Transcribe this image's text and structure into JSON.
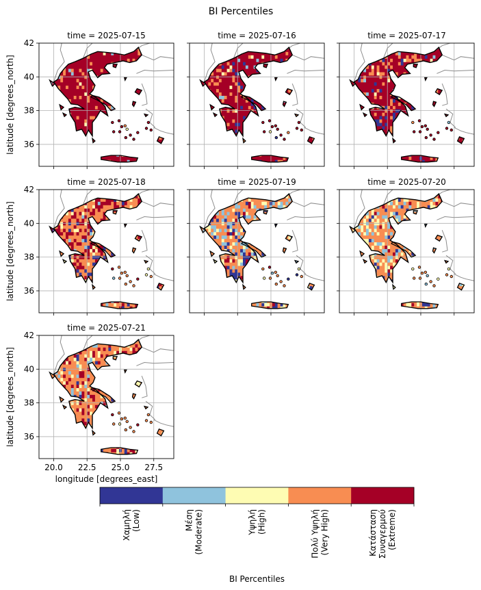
{
  "title": "BI Percentiles",
  "panels": [
    {
      "label": "time = 2025-07-15",
      "mix": [
        0.0,
        0.02,
        0.03,
        0.12,
        0.83
      ]
    },
    {
      "label": "time = 2025-07-16",
      "mix": [
        0.03,
        0.02,
        0.03,
        0.15,
        0.77
      ]
    },
    {
      "label": "time = 2025-07-17",
      "mix": [
        0.05,
        0.02,
        0.03,
        0.18,
        0.72
      ]
    },
    {
      "label": "time = 2025-07-18",
      "mix": [
        0.05,
        0.05,
        0.08,
        0.52,
        0.3
      ]
    },
    {
      "label": "time = 2025-07-19",
      "mix": [
        0.1,
        0.15,
        0.15,
        0.55,
        0.05
      ]
    },
    {
      "label": "time = 2025-07-20",
      "mix": [
        0.04,
        0.12,
        0.22,
        0.57,
        0.05
      ]
    },
    {
      "label": "time = 2025-07-21",
      "mix": [
        0.03,
        0.06,
        0.12,
        0.59,
        0.2
      ]
    }
  ],
  "axes": {
    "ylabel": "latitude [degrees_north]",
    "xlabel": "longitude [degrees_east]",
    "xticks": [
      "20.0",
      "22.5",
      "25.0",
      "27.5"
    ],
    "yticks": [
      "36",
      "38",
      "40",
      "42"
    ],
    "xlim": [
      18.9,
      29.0
    ],
    "ylim": [
      34.7,
      42.0
    ]
  },
  "colorbar": {
    "title": "BI Percentiles",
    "categories": [
      {
        "label": "Χαμηλή\n(Low)",
        "color": "#313695"
      },
      {
        "label": "Μέση\n(Moderate)",
        "color": "#8fc3dd"
      },
      {
        "label": "Υψηλή\n(High)",
        "color": "#fefcb3"
      },
      {
        "label": "Πολύ Υψηλή\n(Very High)",
        "color": "#f88d52"
      },
      {
        "label": "Κατάσταση\nΣυναγερμού\n(Extreme)",
        "color": "#a50026"
      }
    ]
  }
}
